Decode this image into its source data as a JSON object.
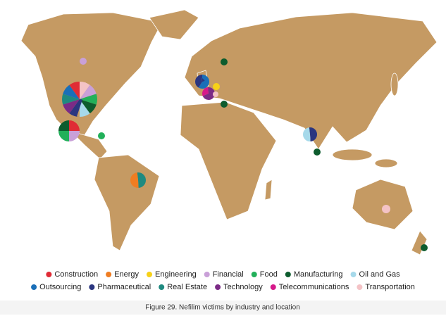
{
  "legend": [
    {
      "label": "Construction",
      "color": "#e02b35"
    },
    {
      "label": "Energy",
      "color": "#ef7d22"
    },
    {
      "label": "Engineering",
      "color": "#f7d117"
    },
    {
      "label": "Financial",
      "color": "#c9a0d8"
    },
    {
      "label": "Food",
      "color": "#22b05a"
    },
    {
      "label": "Manufacturing",
      "color": "#0d5c2e"
    },
    {
      "label": "Oil and Gas",
      "color": "#a6d9ea"
    },
    {
      "label": "Outsourcing",
      "color": "#1a6fb8"
    },
    {
      "label": "Pharmaceutical",
      "color": "#2b3680"
    },
    {
      "label": "Real Estate",
      "color": "#1f8a80"
    },
    {
      "label": "Technology",
      "color": "#7b2b86"
    },
    {
      "label": "Telecommunications",
      "color": "#d6198a"
    },
    {
      "label": "Transportation",
      "color": "#f4c3c6"
    }
  ],
  "caption": "Figure 29. Nefilim victims by industry and location"
}
